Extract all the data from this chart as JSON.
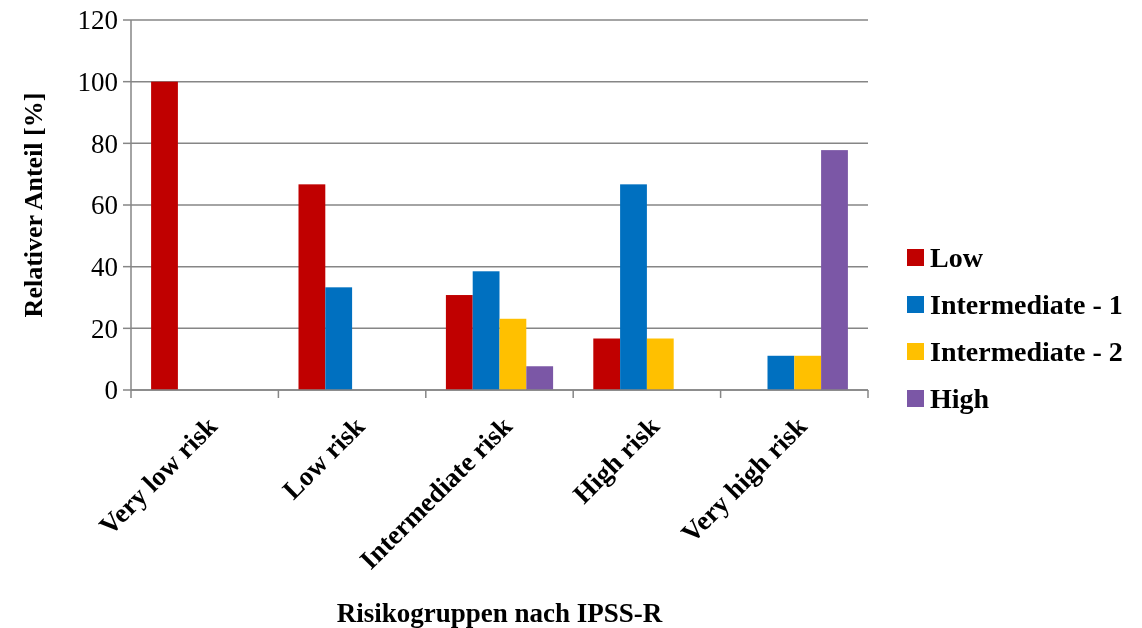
{
  "chart_data": {
    "type": "bar",
    "xlabel": "Risikogruppen nach IPSS-R",
    "ylabel": "Relativer Anteil [%]",
    "categories": [
      "Very low risk",
      "Low risk",
      "Intermediate risk",
      "High risk",
      "Very high risk"
    ],
    "series": [
      {
        "name": "Low",
        "color": "#c00000",
        "values": [
          100,
          66.7,
          30.8,
          16.7,
          null
        ]
      },
      {
        "name": "Intermediate - 1",
        "color": "#0070c0",
        "values": [
          null,
          33.3,
          38.5,
          66.7,
          11.1
        ]
      },
      {
        "name": "Intermediate - 2",
        "color": "#ffc000",
        "values": [
          null,
          null,
          23.1,
          16.7,
          11.1
        ]
      },
      {
        "name": "High",
        "color": "#7b57a6",
        "values": [
          null,
          null,
          7.7,
          null,
          77.8
        ]
      }
    ],
    "ylim": [
      0,
      120
    ],
    "yticks": [
      0,
      20,
      40,
      60,
      80,
      100,
      120
    ],
    "grid": "y",
    "legend": "right"
  }
}
